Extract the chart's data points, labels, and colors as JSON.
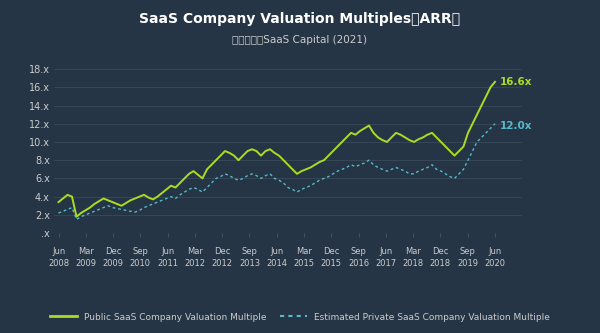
{
  "title": "SaaS Company Valuation Multiples（ARR）",
  "subtitle": "資料來源：SaaS Capital (2021)",
  "bg_color": "#253545",
  "plot_bg_color": "#253545",
  "text_color": "#cccccc",
  "grid_color": "#3d5060",
  "public_color": "#aadd22",
  "private_color": "#55bbcc",
  "ylim": [
    0,
    19
  ],
  "yticks": [
    0,
    2,
    4,
    6,
    8,
    10,
    12,
    14,
    16,
    18
  ],
  "ytick_labels": [
    ".x",
    "2.x",
    "4.x",
    "6.x",
    "8.x",
    "10.x",
    "12.x",
    "14.x",
    "16.x",
    "18.x"
  ],
  "xlabel_top": [
    "Jun",
    "Mar",
    "Dec",
    "Sep",
    "Jun",
    "Mar",
    "Dec",
    "Sep",
    "Jun",
    "Mar",
    "Dec",
    "Sep",
    "Jun",
    "Mar",
    "Dec",
    "Sep",
    "Jun"
  ],
  "xlabel_bot": [
    "2008",
    "2009",
    "2009",
    "2010",
    "2011",
    "2012",
    "2012",
    "2013",
    "2014",
    "2015",
    "2015",
    "2016",
    "2017",
    "2018",
    "2018",
    "2019",
    "2020"
  ],
  "public_end_label": "16.6x",
  "private_end_label": "12.0x",
  "legend_public": "Public SaaS Company Valuation Multiple",
  "legend_private": "Estimated Private SaaS Company Valuation Multiple",
  "public_values": [
    3.4,
    3.8,
    4.2,
    4.0,
    1.8,
    2.2,
    2.5,
    2.8,
    3.2,
    3.5,
    3.8,
    3.6,
    3.4,
    3.2,
    3.0,
    3.3,
    3.6,
    3.8,
    4.0,
    4.2,
    3.9,
    3.7,
    4.0,
    4.4,
    4.8,
    5.2,
    5.0,
    5.5,
    6.0,
    6.5,
    6.8,
    6.4,
    6.0,
    7.0,
    7.5,
    8.0,
    8.5,
    9.0,
    8.8,
    8.5,
    8.0,
    8.5,
    9.0,
    9.2,
    9.0,
    8.5,
    9.0,
    9.2,
    8.8,
    8.5,
    8.0,
    7.5,
    7.0,
    6.5,
    6.8,
    7.0,
    7.2,
    7.5,
    7.8,
    8.0,
    8.5,
    9.0,
    9.5,
    10.0,
    10.5,
    11.0,
    10.8,
    11.2,
    11.5,
    11.8,
    11.0,
    10.5,
    10.2,
    10.0,
    10.5,
    11.0,
    10.8,
    10.5,
    10.2,
    10.0,
    10.3,
    10.5,
    10.8,
    11.0,
    10.5,
    10.0,
    9.5,
    9.0,
    8.5,
    9.0,
    9.5,
    11.0,
    12.0,
    13.0,
    14.0,
    15.0,
    16.0,
    16.6
  ],
  "private_values": [
    2.2,
    2.4,
    2.6,
    2.8,
    1.5,
    1.8,
    2.0,
    2.2,
    2.4,
    2.6,
    2.8,
    3.0,
    2.8,
    2.7,
    2.6,
    2.5,
    2.4,
    2.3,
    2.5,
    2.8,
    3.0,
    3.2,
    3.4,
    3.6,
    3.8,
    4.0,
    3.8,
    4.2,
    4.5,
    4.8,
    5.0,
    4.8,
    4.5,
    5.0,
    5.5,
    6.0,
    6.2,
    6.5,
    6.3,
    6.0,
    5.8,
    6.0,
    6.3,
    6.5,
    6.3,
    6.0,
    6.3,
    6.5,
    6.0,
    5.8,
    5.5,
    5.0,
    4.8,
    4.5,
    4.8,
    5.0,
    5.2,
    5.5,
    5.8,
    6.0,
    6.2,
    6.5,
    6.8,
    7.0,
    7.2,
    7.5,
    7.3,
    7.5,
    7.7,
    8.0,
    7.5,
    7.2,
    7.0,
    6.8,
    7.0,
    7.2,
    7.0,
    6.8,
    6.5,
    6.5,
    6.8,
    7.0,
    7.2,
    7.5,
    7.0,
    6.8,
    6.5,
    6.2,
    6.0,
    6.5,
    7.0,
    8.0,
    9.0,
    10.0,
    10.5,
    11.0,
    11.5,
    12.0
  ]
}
